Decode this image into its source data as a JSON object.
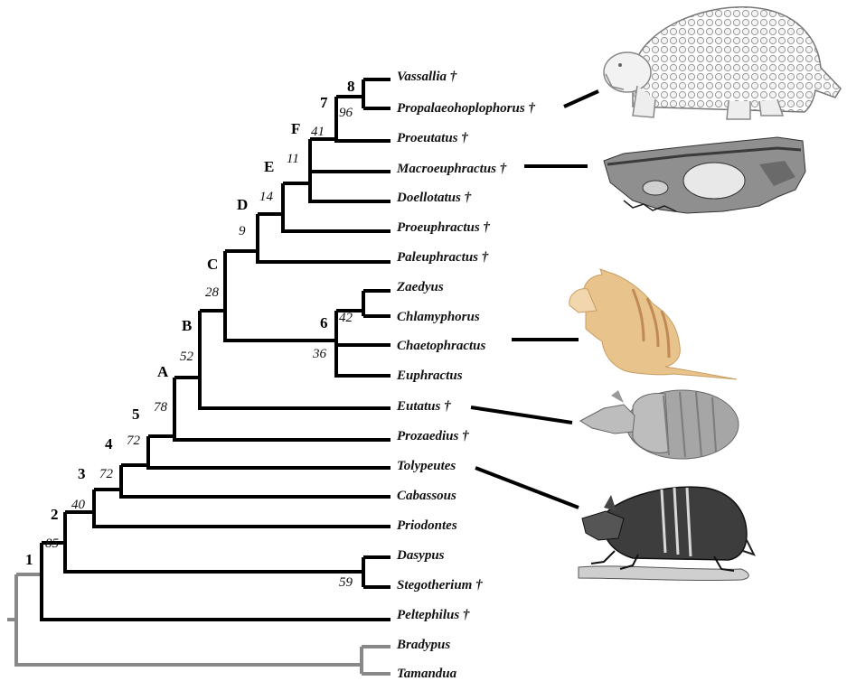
{
  "taxa": {
    "vassallia": "Vassallia †",
    "propalaeohoplophorus": "Propalaeohoplophorus †",
    "proeutatus": "Proeutatus †",
    "macroeuphractus": "Macroeuphractus †",
    "doellotatus": "Doellotatus †",
    "proeuphractus": "Proeuphractus †",
    "paleuphractus": "Paleuphractus †",
    "zaedyus": "Zaedyus",
    "chlamyphorus": "Chlamyphorus",
    "chaetophractus": "Chaetophractus",
    "euphractus": "Euphractus",
    "eutatus": "Eutatus †",
    "prozaedius": "Prozaedius †",
    "tolypeutes": "Tolypeutes",
    "cabassous": "Cabassous",
    "priodontes": "Priodontes",
    "dasypus": "Dasypus",
    "stegotherium": "Stegotherium †",
    "peltephilus": "Peltephilus †",
    "bradypus": "Bradypus",
    "tamandua": "Tamandua"
  },
  "nodes": {
    "n8": {
      "label": "8"
    },
    "n7": {
      "label": "7",
      "support": "96"
    },
    "nF": {
      "label": "F",
      "support": "41"
    },
    "nE": {
      "label": "E",
      "support": "11"
    },
    "nD": {
      "label": "D",
      "support": "14"
    },
    "nC": {
      "label": "C",
      "support": "9"
    },
    "nB": {
      "label": "B",
      "support": "28"
    },
    "nA": {
      "label": "A",
      "support": "52"
    },
    "n5": {
      "label": "5",
      "support": "78"
    },
    "n4": {
      "label": "4",
      "support": "72"
    },
    "n3": {
      "label": "3",
      "support": "72"
    },
    "n2": {
      "label": "2",
      "support": "40"
    },
    "n1": {
      "label": "1",
      "support": "85"
    },
    "n6": {
      "label": "6",
      "support": "36"
    },
    "n6a": {
      "support": "42"
    },
    "nDas": {
      "support": "59"
    }
  },
  "colors": {
    "ingroup": "#000000",
    "outgroup": "#888888"
  },
  "illustrations": [
    "glyptodont-illustration",
    "macroeuphractus-skull",
    "pink-fairy-armadillo",
    "eutatus-reconstruction",
    "three-banded-armadillo"
  ]
}
